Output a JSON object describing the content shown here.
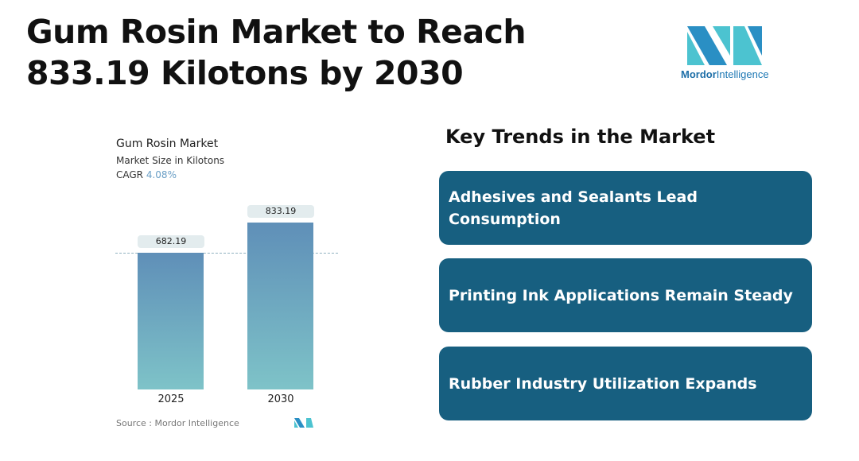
{
  "header": {
    "title": "Gum Rosin Market to Reach 833.19 Kilotons by 2030",
    "logo_text_1": "Mordor",
    "logo_text_2": "Intelligence"
  },
  "chart_data": {
    "type": "bar",
    "title": "Gum Rosin Market",
    "subtitle": "Market Size in Kilotons",
    "cagr_label": "CAGR",
    "cagr_value": "4.08%",
    "categories": [
      "2025",
      "2030"
    ],
    "values": [
      682.19,
      833.19
    ],
    "value_labels": [
      "682.19",
      "833.19"
    ],
    "source": "Source :  Mordor Intelligence",
    "colors": {
      "bar_top": "#5f8fb8",
      "bar_bottom": "#7ec3c8",
      "cagr": "#6a9fc6"
    }
  },
  "trends": {
    "heading": "Key Trends in the Market",
    "items": [
      "Adhesives and Sealants Lead Consumption",
      "Printing Ink Applications Remain Steady",
      "Rubber Industry Utilization Expands"
    ],
    "card_color": "#175f80"
  }
}
